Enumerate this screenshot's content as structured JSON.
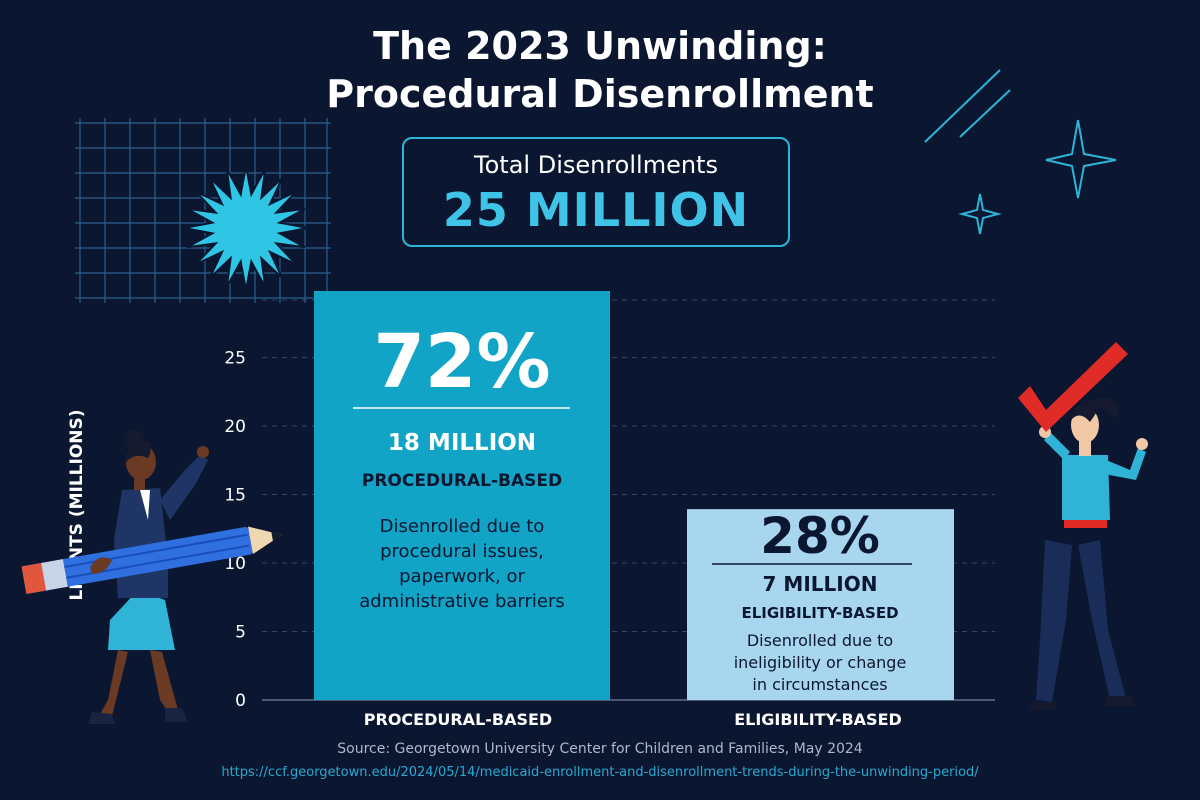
{
  "title_line1": "The 2023 Unwinding:",
  "title_line2": "Procedural Disenrollment",
  "total": {
    "label": "Total Disenrollments",
    "value": "25 MILLION"
  },
  "bars": [
    {
      "percent": "72%",
      "amount": "18 MILLION",
      "category": "PROCEDURAL-BASED",
      "desc": [
        "Disenrolled due to",
        "procedural issues,",
        "paperwork, or",
        "administrative barriers"
      ]
    },
    {
      "percent": "28%",
      "amount": "7 MILLION",
      "category": "ELIGIBILITY-BASED",
      "desc": [
        "Disenrolled due to",
        "ineligibility or change",
        "in circumstances"
      ]
    }
  ],
  "source": "Source: Georgetown University Center for Children and Families, May 2024",
  "source_url": "https://ccf.georgetown.edu/2024/05/14/medicaid-enrollment-and-disenrollment-trends-during-the-unwinding-period/",
  "colors": {
    "background": "#0b1730",
    "procedural_bar": "#12a4c7",
    "eligibility_bar": "#a8d6ee",
    "accent": "#3fc4e8",
    "check": "#e12b26"
  },
  "chart_data": {
    "type": "bar",
    "title": "The 2023 Unwinding: Procedural Disenrollment",
    "categories": [
      "PROCEDURAL-BASED",
      "ELIGIBILITY-BASED"
    ],
    "values": [
      18,
      7
    ],
    "ylabel": "LMENTS (MILLIONS)",
    "xlabel": "",
    "ylim": [
      0,
      25
    ],
    "yticks": [
      0,
      5,
      10,
      15,
      20,
      25
    ],
    "grid": true,
    "legend": "none"
  }
}
